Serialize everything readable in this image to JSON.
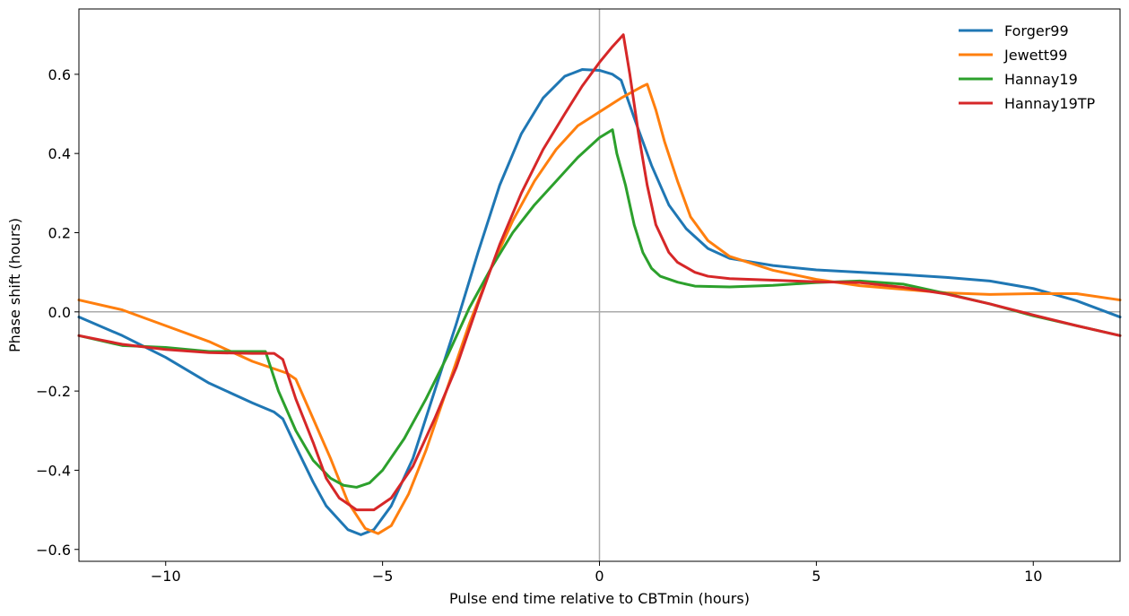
{
  "chart_data": {
    "type": "line",
    "title": "",
    "xlabel": "Pulse end time relative to CBTmin (hours)",
    "ylabel": "Phase shift (hours)",
    "xlim": [
      -12,
      12
    ],
    "ylim": [
      -0.63,
      0.765
    ],
    "xticks": [
      -10,
      -5,
      0,
      5,
      10
    ],
    "xtick_labels": [
      "−10",
      "−5",
      "0",
      "5",
      "10"
    ],
    "yticks": [
      -0.6,
      -0.4,
      -0.2,
      0.0,
      0.2,
      0.4,
      0.6
    ],
    "ytick_labels": [
      "−0.6",
      "−0.4",
      "−0.2",
      "0.0",
      "0.2",
      "0.4",
      "0.6"
    ],
    "grid": false,
    "reference_lines": {
      "x": 0,
      "y": 0
    },
    "legend": {
      "position": "top-right"
    },
    "series": [
      {
        "name": "Forger99",
        "color": "#1f77b4",
        "x": [
          -12,
          -11,
          -10,
          -9,
          -8,
          -7.5,
          -7.3,
          -7,
          -6.6,
          -6.3,
          -5.8,
          -5.5,
          -5.2,
          -4.8,
          -4.3,
          -3.8,
          -3.3,
          -2.8,
          -2.3,
          -1.8,
          -1.3,
          -0.8,
          -0.4,
          0,
          0.3,
          0.5,
          0.8,
          1.2,
          1.6,
          2.0,
          2.5,
          3,
          4,
          5,
          6,
          7,
          8,
          9,
          10,
          11,
          12
        ],
        "y": [
          -0.013,
          -0.06,
          -0.115,
          -0.18,
          -0.23,
          -0.253,
          -0.27,
          -0.34,
          -0.43,
          -0.49,
          -0.55,
          -0.563,
          -0.55,
          -0.49,
          -0.37,
          -0.2,
          -0.03,
          0.15,
          0.32,
          0.45,
          0.54,
          0.595,
          0.612,
          0.61,
          0.6,
          0.585,
          0.49,
          0.37,
          0.27,
          0.21,
          0.16,
          0.135,
          0.117,
          0.106,
          0.1,
          0.094,
          0.087,
          0.078,
          0.059,
          0.028,
          -0.013
        ]
      },
      {
        "name": "Jewett99",
        "color": "#ff7f0e",
        "x": [
          -12,
          -11,
          -10,
          -9,
          -8,
          -7.2,
          -7,
          -6.6,
          -6.2,
          -5.8,
          -5.4,
          -5.1,
          -4.8,
          -4.4,
          -4,
          -3.5,
          -3,
          -2.5,
          -2,
          -1.5,
          -1,
          -0.5,
          0,
          0.5,
          1.0,
          1.1,
          1.3,
          1.5,
          1.8,
          2.1,
          2.5,
          3,
          4,
          5,
          6,
          7,
          8,
          9,
          10,
          11,
          12
        ],
        "y": [
          0.03,
          0.005,
          -0.035,
          -0.075,
          -0.125,
          -0.155,
          -0.17,
          -0.27,
          -0.37,
          -0.48,
          -0.547,
          -0.56,
          -0.54,
          -0.46,
          -0.35,
          -0.19,
          -0.03,
          0.11,
          0.23,
          0.33,
          0.41,
          0.47,
          0.505,
          0.54,
          0.57,
          0.575,
          0.51,
          0.43,
          0.33,
          0.24,
          0.18,
          0.14,
          0.105,
          0.082,
          0.066,
          0.057,
          0.048,
          0.044,
          0.046,
          0.046,
          0.03
        ]
      },
      {
        "name": "Hannay19",
        "color": "#2ca02c",
        "x": [
          -12,
          -11,
          -10,
          -9,
          -8,
          -7.7,
          -7.4,
          -7.0,
          -6.6,
          -6.2,
          -5.9,
          -5.6,
          -5.3,
          -5,
          -4.5,
          -4,
          -3.5,
          -3,
          -2.5,
          -2,
          -1.5,
          -1,
          -0.5,
          0,
          0.3,
          0.4,
          0.6,
          0.8,
          1.0,
          1.2,
          1.4,
          1.8,
          2.2,
          3,
          4,
          5,
          6,
          7,
          8,
          9,
          10,
          11,
          12
        ],
        "y": [
          -0.06,
          -0.085,
          -0.09,
          -0.1,
          -0.1,
          -0.1,
          -0.2,
          -0.3,
          -0.375,
          -0.42,
          -0.438,
          -0.443,
          -0.432,
          -0.4,
          -0.32,
          -0.22,
          -0.11,
          0.01,
          0.11,
          0.2,
          0.27,
          0.33,
          0.39,
          0.44,
          0.46,
          0.4,
          0.32,
          0.22,
          0.15,
          0.11,
          0.09,
          0.075,
          0.065,
          0.063,
          0.067,
          0.074,
          0.078,
          0.07,
          0.046,
          0.02,
          -0.01,
          -0.035,
          -0.06
        ]
      },
      {
        "name": "Hannay19TP",
        "color": "#d62728",
        "x": [
          -12,
          -11,
          -10,
          -9,
          -8,
          -7.5,
          -7.3,
          -7,
          -6.6,
          -6.3,
          -6,
          -5.6,
          -5.2,
          -4.8,
          -4.3,
          -3.8,
          -3.3,
          -2.8,
          -2.3,
          -1.8,
          -1.3,
          -0.8,
          -0.4,
          0,
          0.3,
          0.55,
          0.7,
          0.9,
          1.1,
          1.3,
          1.6,
          1.8,
          2.2,
          2.5,
          3,
          4,
          5,
          6,
          7,
          8,
          9,
          10,
          11,
          12
        ],
        "y": [
          -0.06,
          -0.082,
          -0.095,
          -0.103,
          -0.105,
          -0.105,
          -0.12,
          -0.22,
          -0.33,
          -0.42,
          -0.47,
          -0.5,
          -0.5,
          -0.47,
          -0.39,
          -0.27,
          -0.14,
          0.02,
          0.17,
          0.3,
          0.41,
          0.5,
          0.57,
          0.63,
          0.67,
          0.7,
          0.6,
          0.45,
          0.32,
          0.22,
          0.15,
          0.125,
          0.1,
          0.09,
          0.084,
          0.08,
          0.076,
          0.074,
          0.062,
          0.045,
          0.02,
          -0.008,
          -0.035,
          -0.06
        ]
      }
    ]
  }
}
